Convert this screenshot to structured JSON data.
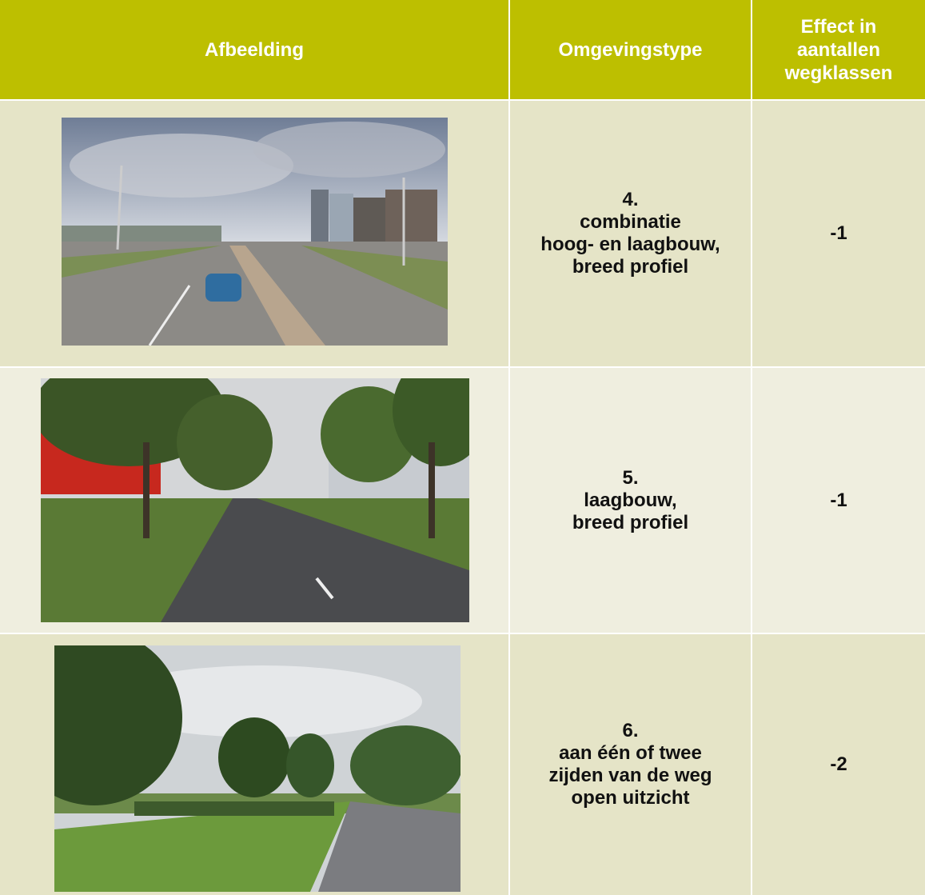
{
  "table": {
    "header": [
      [
        "Afbeelding"
      ],
      [
        "Omgevingstype"
      ],
      [
        "Effect in",
        "aantallen",
        "wegklassen"
      ]
    ],
    "rows": [
      {
        "type": [
          "4.",
          "combinatie",
          "hoog- en laagbouw,",
          "breed profiel"
        ],
        "effect": "-1"
      },
      {
        "type": [
          "5.",
          "laagbouw,",
          "breed profiel"
        ],
        "effect": "-1"
      },
      {
        "type": [
          "6.",
          "aan één of twee",
          "zijden van de weg",
          "open uitzicht"
        ],
        "effect": "-2"
      }
    ]
  }
}
